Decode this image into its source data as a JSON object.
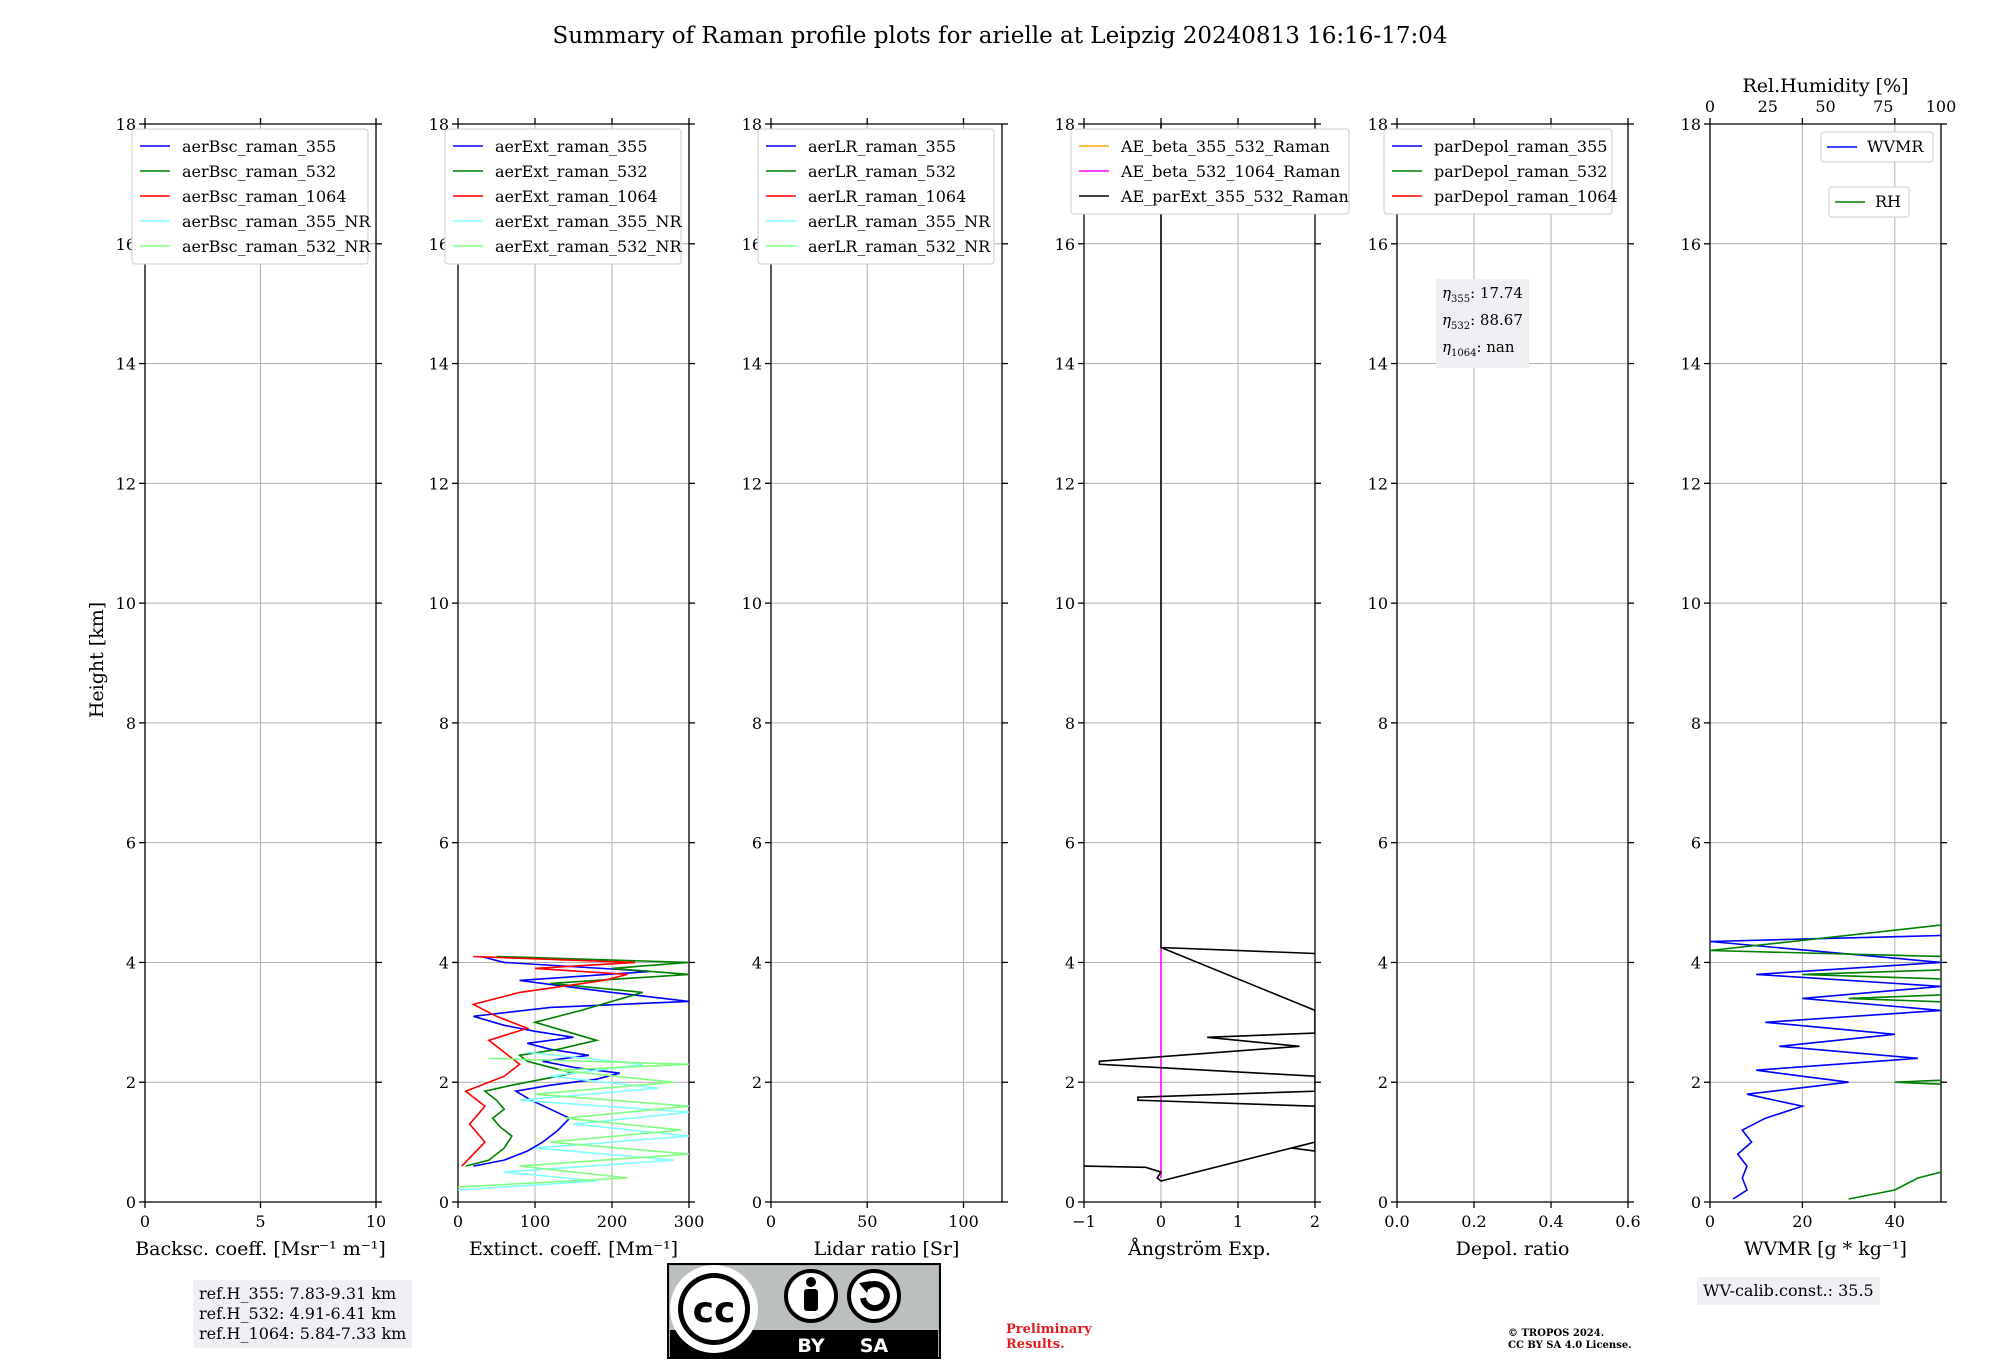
{
  "title": "Summary of Raman profile plots for arielle at Leipzig 20240813 16:16-17:04",
  "ylabel": "Height [km]",
  "chart_data": [
    {
      "type": "line",
      "xlabel": "Backsc. coeff. [Msr⁻¹ m⁻¹]",
      "xlim": [
        0,
        10
      ],
      "xticks": [
        "0",
        "5",
        "10"
      ],
      "ylim": [
        0,
        18
      ],
      "yticks": [
        "0",
        "2",
        "4",
        "6",
        "8",
        "10",
        "12",
        "14",
        "16",
        "18"
      ],
      "grid": true,
      "legend": "upper-left",
      "series": [
        {
          "name": "aerBsc_raman_355",
          "color": "#0000ff",
          "points": []
        },
        {
          "name": "aerBsc_raman_532",
          "color": "#008000",
          "points": []
        },
        {
          "name": "aerBsc_raman_1064",
          "color": "#ff0000",
          "points": []
        },
        {
          "name": "aerBsc_raman_355_NR",
          "color": "#80ffff",
          "points": []
        },
        {
          "name": "aerBsc_raman_532_NR",
          "color": "#80ff80",
          "points": []
        }
      ]
    },
    {
      "type": "line",
      "xlabel": "Extinct. coeff. [Mm⁻¹]",
      "xlim": [
        0,
        300
      ],
      "xticks": [
        "0",
        "100",
        "200",
        "300"
      ],
      "ylim": [
        0,
        18
      ],
      "yticks": [
        "0",
        "2",
        "4",
        "6",
        "8",
        "10",
        "12",
        "14",
        "16",
        "18"
      ],
      "grid": true,
      "legend": "upper-left",
      "series": [
        {
          "name": "aerExt_raman_355",
          "color": "#0000ff",
          "points": [
            [
              20,
              0.6
            ],
            [
              60,
              0.7
            ],
            [
              90,
              0.85
            ],
            [
              110,
              1.0
            ],
            [
              130,
              1.2
            ],
            [
              145,
              1.4
            ],
            [
              120,
              1.55
            ],
            [
              95,
              1.7
            ],
            [
              75,
              1.85
            ],
            [
              120,
              1.95
            ],
            [
              180,
              2.05
            ],
            [
              210,
              2.15
            ],
            [
              150,
              2.25
            ],
            [
              110,
              2.35
            ],
            [
              170,
              2.45
            ],
            [
              120,
              2.55
            ],
            [
              90,
              2.65
            ],
            [
              150,
              2.75
            ],
            [
              100,
              2.85
            ],
            [
              60,
              2.95
            ],
            [
              20,
              3.1
            ],
            [
              120,
              3.25
            ],
            [
              300,
              3.35
            ],
            [
              200,
              3.5
            ],
            [
              80,
              3.7
            ],
            [
              250,
              3.85
            ],
            [
              60,
              4.0
            ],
            [
              30,
              4.1
            ]
          ]
        },
        {
          "name": "aerExt_raman_532",
          "color": "#008000",
          "points": [
            [
              10,
              0.6
            ],
            [
              40,
              0.7
            ],
            [
              60,
              0.9
            ],
            [
              70,
              1.1
            ],
            [
              55,
              1.25
            ],
            [
              45,
              1.4
            ],
            [
              60,
              1.55
            ],
            [
              50,
              1.7
            ],
            [
              35,
              1.85
            ],
            [
              70,
              1.95
            ],
            [
              110,
              2.05
            ],
            [
              150,
              2.15
            ],
            [
              120,
              2.25
            ],
            [
              90,
              2.35
            ],
            [
              80,
              2.45
            ],
            [
              130,
              2.55
            ],
            [
              180,
              2.7
            ],
            [
              140,
              2.85
            ],
            [
              100,
              3.0
            ],
            [
              160,
              3.2
            ],
            [
              240,
              3.5
            ],
            [
              120,
              3.65
            ],
            [
              300,
              3.8
            ],
            [
              200,
              3.9
            ],
            [
              300,
              4.0
            ],
            [
              50,
              4.1
            ]
          ]
        },
        {
          "name": "aerExt_raman_1064",
          "color": "#ff0000",
          "points": [
            [
              5,
              0.6
            ],
            [
              20,
              0.8
            ],
            [
              35,
              1.0
            ],
            [
              25,
              1.15
            ],
            [
              15,
              1.3
            ],
            [
              25,
              1.45
            ],
            [
              35,
              1.6
            ],
            [
              20,
              1.75
            ],
            [
              10,
              1.85
            ],
            [
              30,
              1.95
            ],
            [
              60,
              2.1
            ],
            [
              80,
              2.3
            ],
            [
              60,
              2.5
            ],
            [
              40,
              2.7
            ],
            [
              90,
              2.9
            ],
            [
              50,
              3.1
            ],
            [
              20,
              3.3
            ],
            [
              80,
              3.5
            ],
            [
              190,
              3.7
            ],
            [
              220,
              3.8
            ],
            [
              100,
              3.9
            ],
            [
              230,
              4.0
            ],
            [
              20,
              4.1
            ]
          ]
        },
        {
          "name": "aerExt_raman_355_NR",
          "color": "#80ffff",
          "points": [
            [
              0,
              0.2
            ],
            [
              180,
              0.35
            ],
            [
              60,
              0.5
            ],
            [
              280,
              0.7
            ],
            [
              100,
              0.9
            ],
            [
              300,
              1.1
            ],
            [
              150,
              1.3
            ],
            [
              300,
              1.5
            ],
            [
              80,
              1.7
            ],
            [
              260,
              1.9
            ],
            [
              120,
              2.1
            ],
            [
              240,
              2.3
            ],
            [
              90,
              2.5
            ]
          ]
        },
        {
          "name": "aerExt_raman_532_NR",
          "color": "#80ff80",
          "points": [
            [
              0,
              0.25
            ],
            [
              220,
              0.4
            ],
            [
              80,
              0.6
            ],
            [
              300,
              0.8
            ],
            [
              120,
              1.0
            ],
            [
              290,
              1.2
            ],
            [
              140,
              1.4
            ],
            [
              300,
              1.6
            ],
            [
              100,
              1.8
            ],
            [
              280,
              2.0
            ],
            [
              130,
              2.2
            ],
            [
              300,
              2.3
            ],
            [
              40,
              2.4
            ]
          ]
        }
      ]
    },
    {
      "type": "line",
      "xlabel": "Lidar ratio [Sr]",
      "xlim": [
        0,
        120
      ],
      "xticks": [
        "0",
        "50",
        "100"
      ],
      "ylim": [
        0,
        18
      ],
      "yticks": [
        "0",
        "2",
        "4",
        "6",
        "8",
        "10",
        "12",
        "14",
        "16",
        "18"
      ],
      "grid": true,
      "legend": "upper-left",
      "series": [
        {
          "name": "aerLR_raman_355",
          "color": "#0000ff",
          "points": []
        },
        {
          "name": "aerLR_raman_532",
          "color": "#008000",
          "points": []
        },
        {
          "name": "aerLR_raman_1064",
          "color": "#ff0000",
          "points": []
        },
        {
          "name": "aerLR_raman_355_NR",
          "color": "#80ffff",
          "points": []
        },
        {
          "name": "aerLR_raman_532_NR",
          "color": "#80ff80",
          "points": []
        }
      ]
    },
    {
      "type": "line",
      "xlabel": "Ångström Exp.",
      "xlim": [
        -1,
        2
      ],
      "xticks": [
        "−1",
        "0",
        "1",
        "2"
      ],
      "ylim": [
        0,
        18
      ],
      "yticks": [
        "0",
        "2",
        "4",
        "6",
        "8",
        "10",
        "12",
        "14",
        "16",
        "18"
      ],
      "grid": true,
      "legend": "upper-left",
      "series": [
        {
          "name": "AE_beta_355_532_Raman",
          "color": "#ffa500",
          "points": []
        },
        {
          "name": "AE_beta_532_1064_Raman",
          "color": "#ff00ff",
          "points": [
            [
              0,
              0.4
            ],
            [
              0,
              2.5
            ],
            [
              0,
              3.5
            ],
            [
              0,
              4.25
            ]
          ]
        },
        {
          "name": "AE_parExt_355_532_Raman",
          "color": "#000000",
          "points": [
            [
              -1,
              0.6
            ],
            [
              -0.2,
              0.58
            ],
            [
              0,
              0.5
            ],
            [
              -0.05,
              0.4
            ],
            [
              0,
              0.35
            ],
            [
              2,
              1.0
            ],
            [
              1.7,
              0.9
            ],
            [
              2,
              0.85
            ],
            [
              2,
              1.6
            ],
            [
              -0.3,
              1.7
            ],
            [
              -0.3,
              1.75
            ],
            [
              2,
              1.85
            ],
            [
              2,
              2.1
            ],
            [
              -0.8,
              2.3
            ],
            [
              -0.8,
              2.35
            ],
            [
              1.8,
              2.6
            ],
            [
              0.6,
              2.75
            ],
            [
              2,
              2.82
            ],
            [
              2,
              3.2
            ],
            [
              0,
              4.25
            ],
            [
              2,
              4.15
            ],
            [
              0,
              4.25
            ],
            [
              0,
              18
            ]
          ]
        }
      ]
    },
    {
      "type": "line",
      "xlabel": "Depol. ratio",
      "xlim": [
        0,
        0.6
      ],
      "xticks": [
        "0.0",
        "0.2",
        "0.4",
        "0.6"
      ],
      "ylim": [
        0,
        18
      ],
      "yticks": [
        "0",
        "2",
        "4",
        "6",
        "8",
        "10",
        "12",
        "14",
        "16",
        "18"
      ],
      "grid": true,
      "legend": "upper-left",
      "series": [
        {
          "name": "parDepol_raman_355",
          "color": "#0000ff",
          "points": []
        },
        {
          "name": "parDepol_raman_532",
          "color": "#008000",
          "points": []
        },
        {
          "name": "parDepol_raman_1064",
          "color": "#ff0000",
          "points": []
        }
      ]
    },
    {
      "type": "line",
      "xlabel": "WVMR [g * kg⁻¹]",
      "xlim": [
        0,
        50
      ],
      "xticks": [
        "0",
        "20",
        "40"
      ],
      "x2label": "Rel.Humidity [%]",
      "x2lim": [
        0,
        100
      ],
      "x2ticks": [
        "0",
        "25",
        "50",
        "75",
        "100"
      ],
      "ylim": [
        0,
        18
      ],
      "yticks": [
        "0",
        "2",
        "4",
        "6",
        "8",
        "10",
        "12",
        "14",
        "16",
        "18"
      ],
      "grid": true,
      "legend": "upper-right",
      "series": [
        {
          "name": "WVMR",
          "color": "#0000ff",
          "points": [
            [
              5,
              0.05
            ],
            [
              8,
              0.2
            ],
            [
              7,
              0.4
            ],
            [
              8,
              0.6
            ],
            [
              6,
              0.8
            ],
            [
              9,
              1.0
            ],
            [
              7,
              1.2
            ],
            [
              12,
              1.4
            ],
            [
              20,
              1.6
            ],
            [
              8,
              1.8
            ],
            [
              30,
              2.0
            ],
            [
              10,
              2.2
            ],
            [
              45,
              2.4
            ],
            [
              15,
              2.6
            ],
            [
              40,
              2.8
            ],
            [
              12,
              3.0
            ],
            [
              50,
              3.2
            ],
            [
              20,
              3.4
            ],
            [
              50,
              3.6
            ],
            [
              10,
              3.8
            ],
            [
              50,
              4.0
            ],
            [
              0,
              4.35
            ],
            [
              50,
              4.45
            ]
          ]
        },
        {
          "name": "RH",
          "color": "#008000",
          "points": [
            [
              30,
              0.05
            ],
            [
              40,
              0.2
            ],
            [
              45,
              0.4
            ],
            [
              55,
              0.6
            ],
            [
              60,
              0.8
            ],
            [
              75,
              1.0
            ],
            [
              95,
              1.2
            ],
            [
              100,
              1.4
            ],
            [
              70,
              1.6
            ],
            [
              100,
              1.8
            ],
            [
              40,
              2.0
            ],
            [
              100,
              2.2
            ],
            [
              60,
              2.4
            ],
            [
              100,
              2.6
            ],
            [
              70,
              2.8
            ],
            [
              100,
              3.2
            ],
            [
              30,
              3.4
            ],
            [
              100,
              3.6
            ],
            [
              20,
              3.8
            ],
            [
              100,
              4.0
            ],
            [
              0,
              4.2
            ],
            [
              100,
              5.05
            ],
            [
              100,
              5.3
            ],
            [
              100,
              6.25
            ],
            [
              100,
              6.3
            ],
            [
              100,
              6.45
            ]
          ]
        }
      ]
    }
  ],
  "annotations": {
    "ref_h": [
      "ref.H_355: 7.83-9.31 km",
      "ref.H_532: 4.91-6.41 km",
      "ref.H_1064: 5.84-7.33 km"
    ],
    "eta_355": ": 17.74",
    "eta_532": ": 88.67",
    "eta_1064": ": nan",
    "wv_calib": "WV-calib.const.: 35.5",
    "preliminary_1": "Preliminary",
    "preliminary_2": "Results.",
    "copyright_1": "© TROPOS 2024.",
    "copyright_2": "CC BY SA 4.0 License.",
    "license_by": "BY",
    "license_sa": "SA",
    "license_cc": "cc"
  }
}
